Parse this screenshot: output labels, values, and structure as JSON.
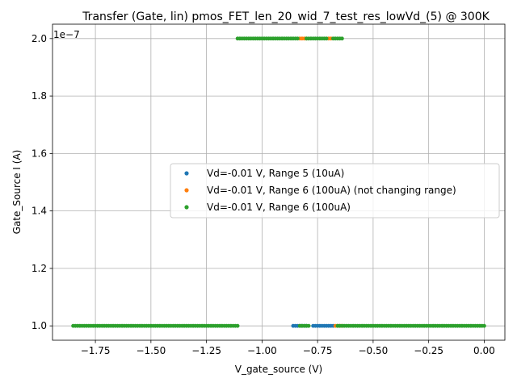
{
  "chart_data": {
    "type": "scatter",
    "title": "Transfer (Gate, lin) pmos_FET_len_20_wid_7_test_res_lowVd_(5) @ 300K",
    "xlabel": "V_gate_source (V)",
    "ylabel": "Gate_Source I (A)",
    "y_offset_label": "1e−7",
    "y_scale": 1e-07,
    "xlim": [
      -1.943,
      0.093
    ],
    "ylim": [
      9.5e-08,
      2.05e-07
    ],
    "x_ticks": [
      -1.75,
      -1.5,
      -1.25,
      -1.0,
      -0.75,
      -0.5,
      -0.25,
      0.0
    ],
    "x_tick_labels": [
      "−1.75",
      "−1.50",
      "−1.25",
      "−1.00",
      "−0.75",
      "−0.50",
      "−0.25",
      "0.00"
    ],
    "y_ticks": [
      1e-07,
      1.2e-07,
      1.4e-07,
      1.6e-07,
      1.8e-07,
      2e-07
    ],
    "y_tick_labels": [
      "1.0",
      "1.2",
      "1.4",
      "1.6",
      "1.8",
      "2.0"
    ],
    "grid": true,
    "legend_position": "center-right",
    "series": [
      {
        "name": "Vd=-0.01 V, Range 5 (10uA)",
        "color": "#1f77b4",
        "segments": [
          {
            "x_start": -0.86,
            "x_end": -0.8,
            "y": 1e-07,
            "step": 0.01
          },
          {
            "x_start": -0.77,
            "x_end": -0.68,
            "y": 1e-07,
            "step": 0.01
          }
        ]
      },
      {
        "name": "Vd=-0.01 V, Range 6 (100uA) (not changing range)",
        "color": "#ff7f0e",
        "segments": [
          {
            "x_start": -0.83,
            "x_end": -0.8,
            "y": 2e-07,
            "step": 0.01
          },
          {
            "x_start": -0.7,
            "x_end": -0.69,
            "y": 2e-07,
            "step": 0.01
          },
          {
            "x_start": -0.67,
            "x_end": -0.64,
            "y": 1e-07,
            "step": 0.01
          }
        ]
      },
      {
        "name": "Vd=-0.01 V, Range 6 (100uA)",
        "color": "#2ca02c",
        "segments": [
          {
            "x_start": -1.85,
            "x_end": -1.11,
            "y": 1e-07,
            "step": 0.01
          },
          {
            "x_start": -0.83,
            "x_end": -0.79,
            "y": 1e-07,
            "step": 0.01
          },
          {
            "x_start": -0.66,
            "x_end": 0.0,
            "y": 1e-07,
            "step": 0.01
          },
          {
            "x_start": -1.11,
            "x_end": -0.84,
            "y": 2e-07,
            "step": 0.01
          },
          {
            "x_start": -0.8,
            "x_end": -0.71,
            "y": 2e-07,
            "step": 0.01
          },
          {
            "x_start": -0.68,
            "x_end": -0.64,
            "y": 2e-07,
            "step": 0.01
          }
        ]
      }
    ]
  }
}
